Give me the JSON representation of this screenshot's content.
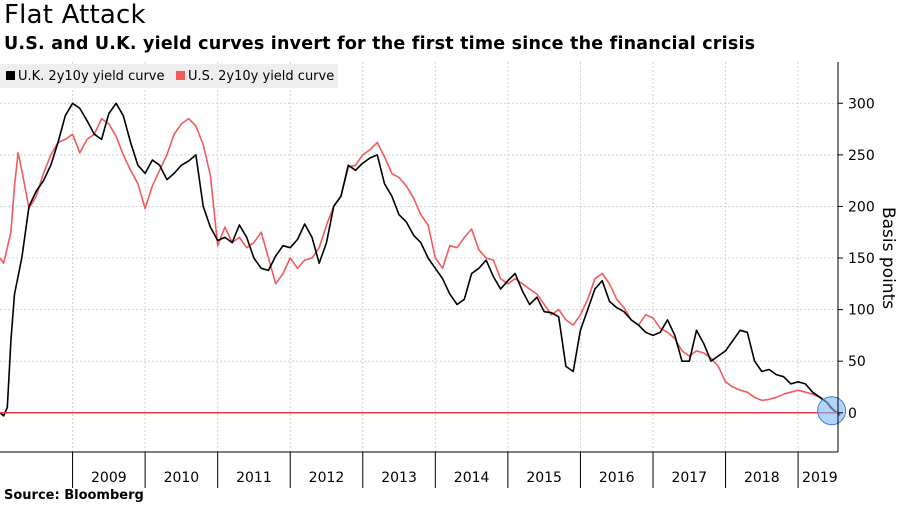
{
  "title": "Flat Attack",
  "subtitle": "U.S. and U.K. yield curves invert for the first time since the financial crisis",
  "source": "Source: Bloomberg",
  "chart_data": {
    "type": "line",
    "title": "Flat Attack",
    "subtitle": "U.S. and U.K. yield curves invert for the first time since the financial crisis",
    "xlabel": "",
    "ylabel": "Basis points",
    "xlim": [
      2008.0,
      2019.55
    ],
    "ylim": [
      -38,
      340
    ],
    "y_ticks": [
      0,
      50,
      100,
      150,
      200,
      250,
      300
    ],
    "x_ticks": [
      "2009",
      "2010",
      "2011",
      "2012",
      "2013",
      "2014",
      "2015",
      "2016",
      "2017",
      "2018",
      "2019"
    ],
    "grid": true,
    "legend_position": "top-left",
    "zero_line_color": "#e8394a",
    "highlight_marker": {
      "x": 2019.6,
      "y": 2,
      "color": "#7fb8f2"
    },
    "series": [
      {
        "name": "U.K. 2y10y yield curve",
        "color": "#000000",
        "x": [
          2008.0,
          2008.05,
          2008.1,
          2008.12,
          2008.15,
          2008.2,
          2008.3,
          2008.4,
          2008.5,
          2008.6,
          2008.7,
          2008.8,
          2008.9,
          2009.0,
          2009.1,
          2009.2,
          2009.3,
          2009.4,
          2009.5,
          2009.6,
          2009.7,
          2009.8,
          2009.9,
          2010.0,
          2010.1,
          2010.2,
          2010.3,
          2010.4,
          2010.5,
          2010.6,
          2010.7,
          2010.8,
          2010.9,
          2011.0,
          2011.1,
          2011.2,
          2011.3,
          2011.4,
          2011.5,
          2011.6,
          2011.7,
          2011.8,
          2011.9,
          2012.0,
          2012.1,
          2012.2,
          2012.3,
          2012.4,
          2012.5,
          2012.6,
          2012.7,
          2012.8,
          2012.9,
          2013.0,
          2013.1,
          2013.2,
          2013.3,
          2013.4,
          2013.5,
          2013.6,
          2013.7,
          2013.8,
          2013.9,
          2014.0,
          2014.1,
          2014.2,
          2014.3,
          2014.4,
          2014.5,
          2014.6,
          2014.7,
          2014.8,
          2014.9,
          2015.0,
          2015.1,
          2015.2,
          2015.3,
          2015.4,
          2015.5,
          2015.6,
          2015.7,
          2015.8,
          2015.9,
          2016.0,
          2016.1,
          2016.2,
          2016.3,
          2016.4,
          2016.5,
          2016.6,
          2016.7,
          2016.8,
          2016.9,
          2017.0,
          2017.1,
          2017.2,
          2017.3,
          2017.4,
          2017.5,
          2017.6,
          2017.7,
          2017.8,
          2017.9,
          2018.0,
          2018.1,
          2018.2,
          2018.3,
          2018.4,
          2018.5,
          2018.6,
          2018.7,
          2018.8,
          2018.9,
          2019.0,
          2019.1,
          2019.2,
          2019.3,
          2019.4,
          2019.45,
          2019.5,
          2019.58
        ],
        "y": [
          0,
          -3,
          5,
          30,
          70,
          115,
          150,
          200,
          215,
          225,
          240,
          262,
          288,
          300,
          295,
          283,
          270,
          265,
          290,
          300,
          288,
          262,
          240,
          232,
          245,
          240,
          226,
          232,
          240,
          244,
          250,
          200,
          180,
          167,
          170,
          165,
          182,
          170,
          150,
          140,
          138,
          152,
          162,
          160,
          168,
          183,
          170,
          145,
          165,
          200,
          210,
          240,
          235,
          242,
          247,
          250,
          222,
          210,
          192,
          185,
          172,
          165,
          150,
          140,
          130,
          115,
          105,
          110,
          135,
          140,
          148,
          132,
          120,
          128,
          135,
          118,
          105,
          112,
          98,
          97,
          93,
          45,
          40,
          80,
          100,
          120,
          128,
          108,
          102,
          98,
          90,
          85,
          78,
          75,
          78,
          90,
          75,
          50,
          50,
          80,
          67,
          50,
          55,
          60,
          70,
          80,
          78,
          50,
          40,
          42,
          37,
          35,
          28,
          30,
          28,
          20,
          15,
          10,
          5,
          2,
          -2
        ]
      },
      {
        "name": "U.S. 2y10y yield curve",
        "color": "#f25a5c",
        "x": [
          2008.0,
          2008.05,
          2008.1,
          2008.15,
          2008.2,
          2008.25,
          2008.3,
          2008.4,
          2008.5,
          2008.6,
          2008.7,
          2008.8,
          2008.9,
          2009.0,
          2009.1,
          2009.2,
          2009.3,
          2009.4,
          2009.5,
          2009.6,
          2009.7,
          2009.8,
          2009.9,
          2010.0,
          2010.1,
          2010.2,
          2010.3,
          2010.4,
          2010.5,
          2010.6,
          2010.7,
          2010.8,
          2010.9,
          2011.0,
          2011.1,
          2011.2,
          2011.3,
          2011.4,
          2011.5,
          2011.6,
          2011.7,
          2011.8,
          2011.9,
          2012.0,
          2012.1,
          2012.2,
          2012.3,
          2012.4,
          2012.5,
          2012.6,
          2012.7,
          2012.8,
          2012.9,
          2013.0,
          2013.1,
          2013.2,
          2013.3,
          2013.4,
          2013.5,
          2013.6,
          2013.7,
          2013.8,
          2013.9,
          2014.0,
          2014.1,
          2014.2,
          2014.3,
          2014.4,
          2014.5,
          2014.6,
          2014.7,
          2014.8,
          2014.9,
          2015.0,
          2015.1,
          2015.2,
          2015.3,
          2015.4,
          2015.5,
          2015.6,
          2015.7,
          2015.8,
          2015.9,
          2016.0,
          2016.1,
          2016.2,
          2016.3,
          2016.4,
          2016.5,
          2016.6,
          2016.7,
          2016.8,
          2016.9,
          2017.0,
          2017.1,
          2017.2,
          2017.3,
          2017.4,
          2017.5,
          2017.6,
          2017.7,
          2017.8,
          2017.9,
          2018.0,
          2018.1,
          2018.2,
          2018.3,
          2018.4,
          2018.5,
          2018.6,
          2018.7,
          2018.8,
          2018.9,
          2019.0,
          2019.1,
          2019.2,
          2019.3,
          2019.4,
          2019.5,
          2019.58
        ],
        "y": [
          150,
          145,
          160,
          175,
          220,
          252,
          235,
          198,
          210,
          232,
          250,
          262,
          265,
          270,
          252,
          265,
          270,
          285,
          280,
          268,
          250,
          235,
          222,
          198,
          220,
          235,
          250,
          270,
          280,
          285,
          278,
          260,
          230,
          162,
          180,
          165,
          170,
          160,
          165,
          175,
          150,
          125,
          135,
          150,
          140,
          148,
          150,
          160,
          182,
          200,
          210,
          238,
          240,
          250,
          255,
          262,
          248,
          232,
          228,
          220,
          208,
          192,
          182,
          150,
          140,
          162,
          160,
          170,
          178,
          158,
          150,
          148,
          130,
          125,
          130,
          125,
          120,
          115,
          105,
          95,
          100,
          90,
          85,
          95,
          110,
          130,
          135,
          125,
          110,
          102,
          90,
          85,
          95,
          92,
          82,
          78,
          72,
          60,
          55,
          60,
          58,
          53,
          45,
          30,
          25,
          22,
          20,
          15,
          12,
          13,
          15,
          18,
          20,
          22,
          20,
          18,
          15,
          10,
          2,
          -3
        ]
      }
    ]
  }
}
